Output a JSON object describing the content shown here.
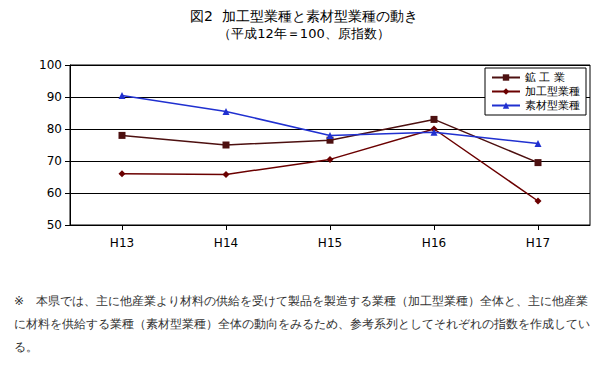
{
  "chart_data": {
    "type": "line",
    "title": "図2  加工型業種と素材型業種の動き",
    "subtitle": "（平成12年＝100、原指数）",
    "categories": [
      "H13",
      "H14",
      "H15",
      "H16",
      "H17"
    ],
    "series": [
      {
        "name": "鉱 工 業",
        "color": "#4d1010",
        "marker": "square",
        "values": [
          78,
          75,
          76.5,
          83,
          69.5
        ]
      },
      {
        "name": "加工型業種",
        "color": "#6b0000",
        "marker": "diamond",
        "values": [
          66,
          65.8,
          70.5,
          80,
          57.5
        ]
      },
      {
        "name": "素材型業種",
        "color": "#2030d0",
        "marker": "triangle",
        "values": [
          90.5,
          85.5,
          78,
          79,
          75.5
        ]
      }
    ],
    "ylim": [
      50,
      100
    ],
    "yticks": [
      50,
      60,
      70,
      80,
      90,
      100
    ],
    "grid": true,
    "legend": "top-right",
    "annotations": [
      "※　本県では、主に他産業より材料の供給を受けて製品を製造する業種（加工型業種）全体と、主に他産業に材料を供給する業種（素材型業種）全体の動向をみるため、参考系列としてそれぞれの指数を作成している。"
    ]
  }
}
